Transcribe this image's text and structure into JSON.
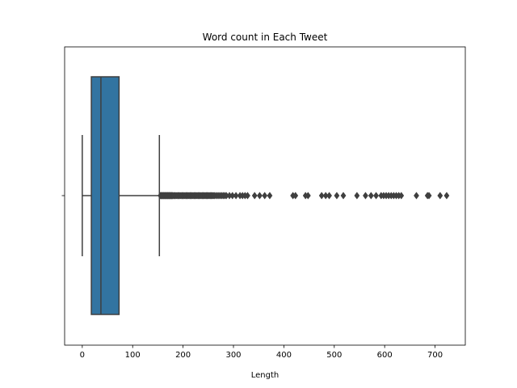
{
  "chart_data": {
    "type": "box",
    "orientation": "horizontal",
    "title": "Word count in Each Tweet",
    "xlabel": "Length",
    "ylabel": "",
    "xlim": [
      -35,
      760
    ],
    "x_ticks": [
      0,
      100,
      200,
      300,
      400,
      500,
      600,
      700
    ],
    "x_tick_labels": [
      "0",
      "100",
      "200",
      "300",
      "400",
      "500",
      "600",
      "700"
    ],
    "colors": {
      "box_fill": "#3274a1",
      "lines": "#3f3f3f"
    },
    "box": {
      "whisker_low": 0,
      "q1": 18,
      "median": 37,
      "q3": 73,
      "whisker_high": 153
    },
    "outliers": [
      155,
      156,
      157,
      158,
      159,
      160,
      161,
      162,
      163,
      164,
      165,
      166,
      167,
      168,
      169,
      170,
      171,
      172,
      173,
      174,
      175,
      176,
      177,
      178,
      179,
      180,
      182,
      184,
      186,
      188,
      190,
      192,
      194,
      196,
      198,
      200,
      202,
      204,
      206,
      208,
      210,
      212,
      214,
      216,
      218,
      220,
      222,
      224,
      226,
      228,
      230,
      232,
      234,
      236,
      238,
      240,
      242,
      244,
      246,
      248,
      250,
      252,
      254,
      256,
      258,
      260,
      262,
      265,
      268,
      271,
      274,
      277,
      280,
      283,
      286,
      292,
      298,
      305,
      313,
      318,
      323,
      328,
      342,
      352,
      362,
      372,
      418,
      423,
      443,
      448,
      475,
      483,
      490,
      505,
      518,
      545,
      562,
      573,
      583,
      593,
      598,
      603,
      608,
      613,
      618,
      623,
      628,
      633,
      663,
      685,
      688,
      710,
      723
    ]
  }
}
